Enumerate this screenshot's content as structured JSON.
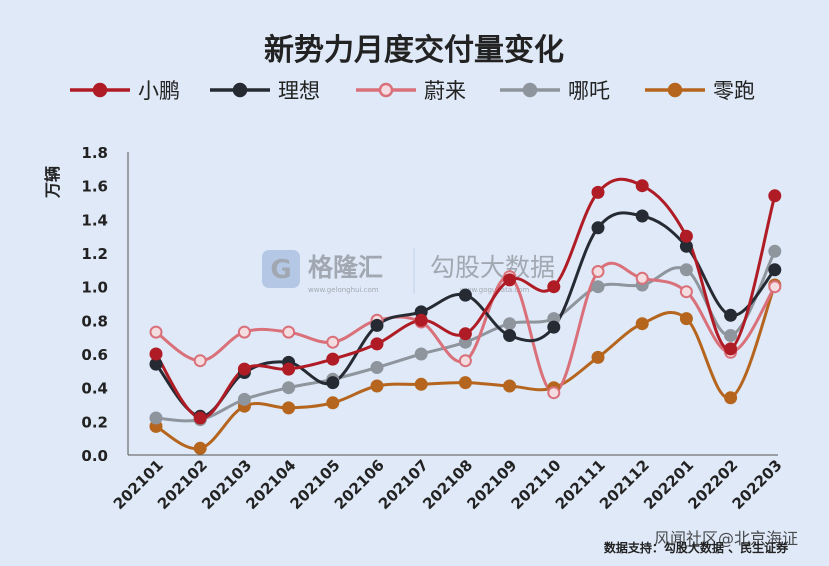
{
  "chart_data": {
    "type": "line",
    "title": "新势力月度交付量变化",
    "ylabel": "万辆",
    "xlabel": "",
    "ylim": [
      0,
      1.8
    ],
    "y_ticks": [
      "0.0",
      "0.2",
      "0.4",
      "0.6",
      "0.8",
      "1.0",
      "1.2",
      "1.4",
      "1.6",
      "1.8"
    ],
    "categories": [
      "202101",
      "202102",
      "202103",
      "202104",
      "202105",
      "202106",
      "202107",
      "202108",
      "202109",
      "202110",
      "202111",
      "202112",
      "202201",
      "202202",
      "202203"
    ],
    "grid": false,
    "legend_position": "top",
    "series": [
      {
        "name": "小鹏",
        "color": "#b01c26",
        "marker_fill": "#b01c26",
        "values": [
          0.6,
          0.22,
          0.51,
          0.51,
          0.57,
          0.66,
          0.8,
          0.72,
          1.04,
          1.0,
          1.56,
          1.6,
          1.3,
          0.63,
          1.54
        ]
      },
      {
        "name": "理想",
        "color": "#262a33",
        "marker_fill": "#262a33",
        "values": [
          0.54,
          0.23,
          0.49,
          0.55,
          0.43,
          0.77,
          0.85,
          0.95,
          0.71,
          0.76,
          1.35,
          1.42,
          1.24,
          0.83,
          1.1
        ]
      },
      {
        "name": "蔚来",
        "color": "#d9707a",
        "marker_fill": "#f4dde0",
        "values": [
          0.73,
          0.56,
          0.73,
          0.73,
          0.67,
          0.8,
          0.79,
          0.56,
          1.06,
          0.37,
          1.09,
          1.05,
          0.97,
          0.61,
          1.0
        ]
      },
      {
        "name": "哪吒",
        "color": "#8f959d",
        "marker_fill": "#8f959d",
        "values": [
          0.22,
          0.21,
          0.33,
          0.4,
          0.45,
          0.52,
          0.6,
          0.67,
          0.78,
          0.81,
          1.0,
          1.01,
          1.1,
          0.71,
          1.21
        ]
      },
      {
        "name": "零跑",
        "color": "#b5651d",
        "marker_fill": "#b5651d",
        "values": [
          0.17,
          0.04,
          0.29,
          0.28,
          0.31,
          0.41,
          0.42,
          0.43,
          0.41,
          0.4,
          0.58,
          0.78,
          0.81,
          0.34,
          1.01
        ]
      }
    ]
  },
  "watermark": {
    "logo_text": "格隆汇",
    "logo_sub": "www.gelonghui.com",
    "brand_text": "勾股大数据",
    "brand_sub": "www.gogudata.com"
  },
  "source_note": "数据支持：勾股大数据 、民生证券",
  "corner_watermark": "风闻社区@北京海证"
}
